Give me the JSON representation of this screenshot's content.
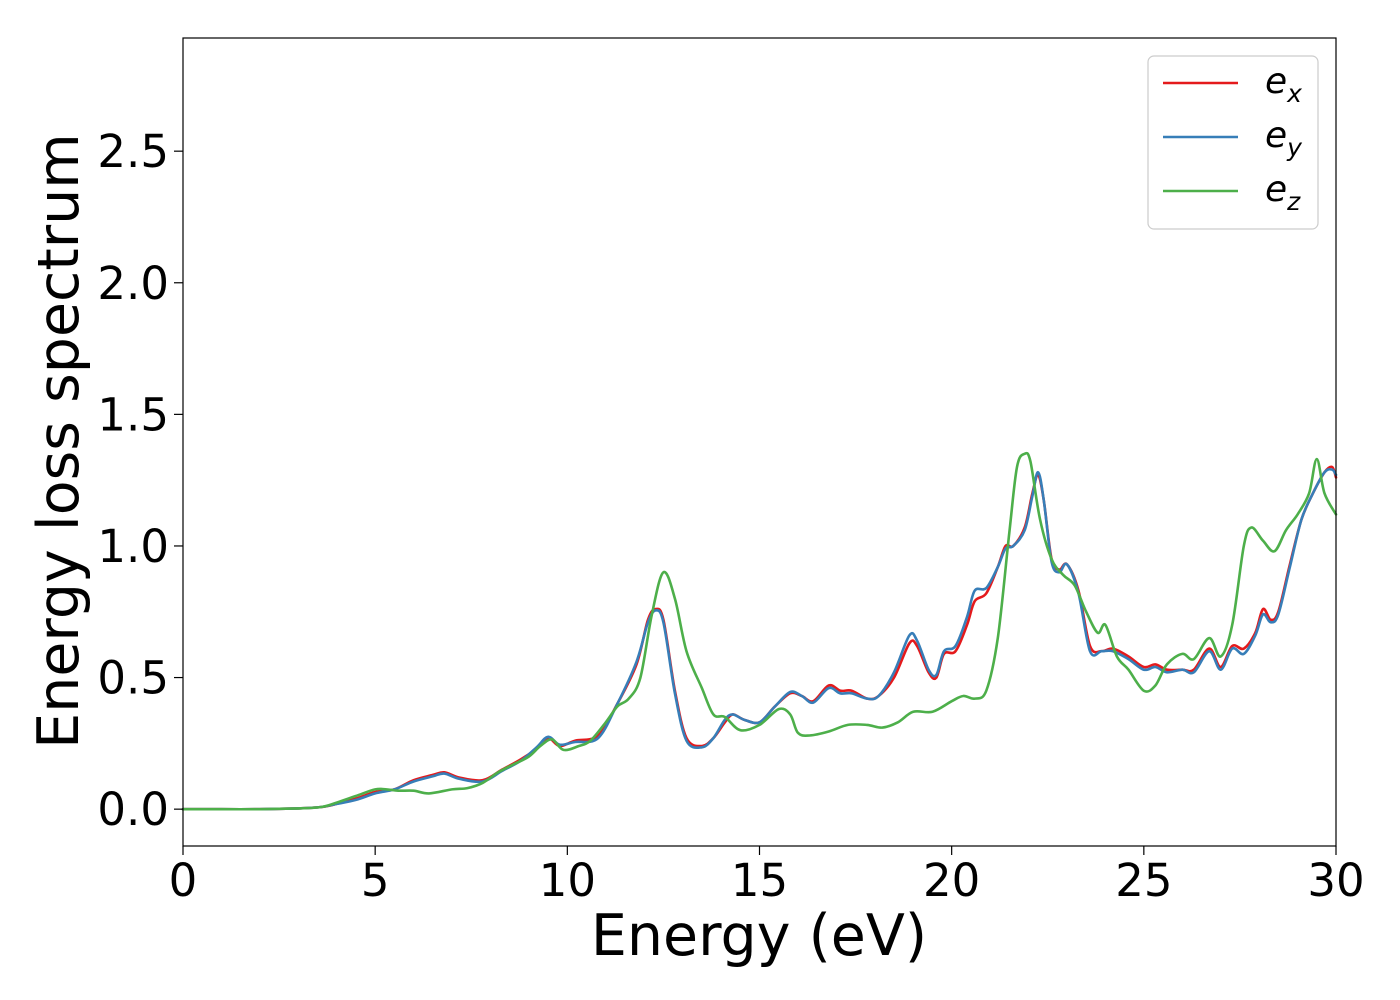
{
  "chart_data": {
    "type": "line",
    "xlabel": "Energy (eV)",
    "ylabel": "Energy loss spectrum",
    "xlim": [
      0,
      30
    ],
    "ylim": [
      -0.14,
      2.93
    ],
    "xticks": [
      "0",
      "5",
      "10",
      "15",
      "20",
      "25",
      "30"
    ],
    "xtick_values": [
      0,
      5,
      10,
      15,
      20,
      25,
      30
    ],
    "yticks": [
      "0.0",
      "0.5",
      "1.0",
      "1.5",
      "2.0",
      "2.5"
    ],
    "ytick_values": [
      0,
      0.5,
      1.0,
      1.5,
      2.0,
      2.5
    ],
    "grid": false,
    "legend_position": "upper-right",
    "series": [
      {
        "name": "e_x",
        "label_base": "e",
        "label_sub": "x",
        "color": "#e41a1c",
        "x": [
          0,
          1,
          2,
          3,
          3.6,
          4,
          4.5,
          5,
          5.5,
          6,
          6.5,
          6.8,
          7.2,
          7.8,
          8.3,
          8.8,
          9.2,
          9.5,
          9.8,
          10.2,
          10.8,
          11.3,
          11.8,
          12.1,
          12.3,
          12.5,
          12.8,
          13.1,
          13.5,
          13.8,
          14.1,
          14.3,
          14.6,
          15,
          15.4,
          15.8,
          16.1,
          16.4,
          16.8,
          17.1,
          17.4,
          17.8,
          18.1,
          18.5,
          18.9,
          19.1,
          19.4,
          19.6,
          19.8,
          20.1,
          20.4,
          20.6,
          20.9,
          21.2,
          21.4,
          21.6,
          21.9,
          22.1,
          22.25,
          22.4,
          22.6,
          22.8,
          23,
          23.3,
          23.6,
          23.9,
          24.2,
          24.6,
          25,
          25.3,
          25.6,
          26,
          26.3,
          26.7,
          27,
          27.3,
          27.6,
          27.9,
          28.1,
          28.3,
          28.5,
          28.8,
          29.1,
          29.4,
          29.7,
          29.9,
          30
        ],
        "values": [
          0.0,
          0.0,
          0.0,
          0.003,
          0.008,
          0.02,
          0.04,
          0.065,
          0.075,
          0.11,
          0.13,
          0.14,
          0.12,
          0.11,
          0.15,
          0.19,
          0.23,
          0.27,
          0.24,
          0.26,
          0.28,
          0.4,
          0.55,
          0.72,
          0.76,
          0.72,
          0.45,
          0.27,
          0.24,
          0.27,
          0.33,
          0.36,
          0.34,
          0.33,
          0.39,
          0.44,
          0.43,
          0.41,
          0.47,
          0.45,
          0.45,
          0.42,
          0.43,
          0.5,
          0.63,
          0.62,
          0.52,
          0.5,
          0.59,
          0.6,
          0.7,
          0.79,
          0.82,
          0.92,
          1.0,
          1.0,
          1.07,
          1.2,
          1.27,
          1.17,
          0.95,
          0.91,
          0.93,
          0.83,
          0.62,
          0.6,
          0.61,
          0.58,
          0.54,
          0.55,
          0.53,
          0.53,
          0.53,
          0.61,
          0.54,
          0.62,
          0.61,
          0.67,
          0.76,
          0.72,
          0.75,
          0.93,
          1.1,
          1.2,
          1.28,
          1.3,
          1.26
        ]
      },
      {
        "name": "e_y",
        "label_base": "e",
        "label_sub": "y",
        "color": "#377eb8",
        "x": [
          0,
          1,
          2,
          3,
          3.6,
          4,
          4.5,
          5,
          5.5,
          6,
          6.5,
          6.8,
          7.2,
          7.8,
          8.3,
          8.8,
          9.2,
          9.5,
          9.8,
          10.2,
          10.8,
          11.3,
          11.8,
          12.1,
          12.3,
          12.5,
          12.8,
          13.1,
          13.5,
          13.8,
          14.1,
          14.3,
          14.6,
          15,
          15.4,
          15.8,
          16.1,
          16.4,
          16.8,
          17.1,
          17.4,
          17.8,
          18.1,
          18.5,
          18.9,
          19.1,
          19.4,
          19.6,
          19.8,
          20.1,
          20.4,
          20.6,
          20.9,
          21.2,
          21.4,
          21.6,
          21.9,
          22.1,
          22.25,
          22.4,
          22.6,
          22.8,
          23,
          23.3,
          23.6,
          23.9,
          24.2,
          24.6,
          25,
          25.3,
          25.6,
          26,
          26.3,
          26.7,
          27,
          27.3,
          27.6,
          27.9,
          28.1,
          28.3,
          28.5,
          28.8,
          29.1,
          29.4,
          29.7,
          29.9,
          30
        ],
        "values": [
          0.0,
          0.0,
          0.0,
          0.003,
          0.008,
          0.02,
          0.035,
          0.06,
          0.075,
          0.105,
          0.125,
          0.135,
          0.115,
          0.105,
          0.145,
          0.185,
          0.235,
          0.275,
          0.245,
          0.255,
          0.27,
          0.4,
          0.56,
          0.71,
          0.755,
          0.71,
          0.44,
          0.26,
          0.235,
          0.27,
          0.34,
          0.36,
          0.34,
          0.33,
          0.39,
          0.445,
          0.43,
          0.405,
          0.46,
          0.44,
          0.44,
          0.42,
          0.43,
          0.52,
          0.66,
          0.64,
          0.53,
          0.51,
          0.6,
          0.62,
          0.73,
          0.83,
          0.84,
          0.92,
          0.99,
          1.0,
          1.06,
          1.19,
          1.28,
          1.17,
          0.94,
          0.9,
          0.93,
          0.82,
          0.6,
          0.6,
          0.6,
          0.57,
          0.53,
          0.54,
          0.52,
          0.53,
          0.52,
          0.6,
          0.53,
          0.61,
          0.59,
          0.66,
          0.74,
          0.71,
          0.74,
          0.92,
          1.1,
          1.2,
          1.28,
          1.29,
          1.27
        ]
      },
      {
        "name": "e_z",
        "label_base": "e",
        "label_sub": "z",
        "color": "#4daf4a",
        "x": [
          0,
          1,
          2,
          3,
          3.6,
          4,
          4.5,
          5,
          5.3,
          5.6,
          6,
          6.4,
          7,
          7.4,
          7.8,
          8.2,
          8.6,
          9,
          9.3,
          9.6,
          9.9,
          10.3,
          10.6,
          11,
          11.3,
          11.6,
          11.9,
          12.2,
          12.5,
          12.8,
          13.1,
          13.5,
          13.8,
          14.1,
          14.5,
          15,
          15.5,
          15.8,
          16,
          16.3,
          16.8,
          17.3,
          17.8,
          18.2,
          18.6,
          19,
          19.5,
          20,
          20.3,
          20.6,
          20.9,
          21.2,
          21.5,
          21.7,
          21.9,
          22.05,
          22.3,
          22.6,
          22.9,
          23.2,
          23.5,
          23.8,
          24,
          24.3,
          24.6,
          25,
          25.3,
          25.6,
          26,
          26.3,
          26.7,
          27,
          27.3,
          27.6,
          27.8,
          28.1,
          28.4,
          28.7,
          29,
          29.3,
          29.5,
          29.7,
          30
        ],
        "values": [
          0.0,
          0.0,
          0.0,
          0.003,
          0.008,
          0.025,
          0.05,
          0.075,
          0.075,
          0.07,
          0.07,
          0.06,
          0.075,
          0.08,
          0.1,
          0.14,
          0.17,
          0.2,
          0.24,
          0.265,
          0.225,
          0.24,
          0.26,
          0.33,
          0.39,
          0.42,
          0.5,
          0.74,
          0.9,
          0.8,
          0.6,
          0.46,
          0.36,
          0.35,
          0.3,
          0.32,
          0.38,
          0.36,
          0.29,
          0.28,
          0.295,
          0.32,
          0.32,
          0.31,
          0.33,
          0.37,
          0.37,
          0.41,
          0.43,
          0.42,
          0.45,
          0.65,
          1.05,
          1.3,
          1.35,
          1.32,
          1.1,
          0.95,
          0.89,
          0.85,
          0.75,
          0.67,
          0.7,
          0.58,
          0.53,
          0.45,
          0.47,
          0.55,
          0.59,
          0.57,
          0.65,
          0.58,
          0.7,
          1.0,
          1.07,
          1.02,
          0.98,
          1.06,
          1.12,
          1.2,
          1.33,
          1.2,
          1.12
        ]
      }
    ]
  }
}
